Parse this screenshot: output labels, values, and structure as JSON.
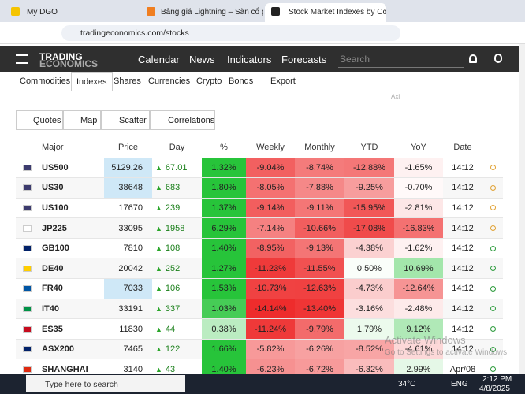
{
  "browser": {
    "tabs": [
      "My DGO",
      "Bảng giá Lightning – Sàn cổ phi",
      "Stock Market Indexes by Count"
    ],
    "url": "tradingeconomics.com/stocks"
  },
  "header": {
    "logo": [
      "TRADING",
      "ECONOMICS"
    ],
    "nav": [
      "Calendar",
      "News",
      "Indicators",
      "Forecasts"
    ],
    "search": "Search"
  },
  "subnav": [
    "Commodities",
    "Indexes",
    "Shares",
    "Currencies",
    "Crypto",
    "Bonds",
    "Export"
  ],
  "ad": "Axi",
  "toolbar": [
    "Quotes",
    "Map",
    "Scatter",
    "Correlations"
  ],
  "table": {
    "headers": [
      "Major",
      "Price",
      "Day",
      "%",
      "Weekly",
      "Monthly",
      "YTD",
      "YoY",
      "Date"
    ],
    "rows": [
      [
        "US500",
        "5129.26",
        "67.01",
        "1.32%",
        "-9.04%",
        "-8.74%",
        "-12.88%",
        "-1.65%",
        "14:12"
      ],
      [
        "US30",
        "38648",
        "683",
        "1.80%",
        "-8.05%",
        "-7.88%",
        "-9.25%",
        "-0.70%",
        "14:12"
      ],
      [
        "US100",
        "17670",
        "239",
        "1.37%",
        "-9.14%",
        "-9.11%",
        "-15.95%",
        "-2.81%",
        "14:12"
      ],
      [
        "JP225",
        "33095",
        "1958",
        "6.29%",
        "-7.14%",
        "-10.66%",
        "-17.08%",
        "-16.83%",
        "14:12"
      ],
      [
        "GB100",
        "7810",
        "108",
        "1.40%",
        "-8.95%",
        "-9.13%",
        "-4.38%",
        "-1.62%",
        "14:12"
      ],
      [
        "DE40",
        "20042",
        "252",
        "1.27%",
        "-11.23%",
        "-11.55%",
        "0.50%",
        "10.69%",
        "14:12"
      ],
      [
        "FR40",
        "7033",
        "106",
        "1.53%",
        "-10.73%",
        "-12.63%",
        "-4.73%",
        "-12.64%",
        "14:12"
      ],
      [
        "IT40",
        "33191",
        "337",
        "1.03%",
        "-14.14%",
        "-13.40%",
        "-3.16%",
        "-2.48%",
        "14:12"
      ],
      [
        "ES35",
        "11830",
        "44",
        "0.38%",
        "-11.24%",
        "-9.79%",
        "1.79%",
        "9.12%",
        "14:12"
      ],
      [
        "ASX200",
        "7465",
        "122",
        "1.66%",
        "-5.82%",
        "-6.26%",
        "-8.52%",
        "-4.61%",
        "14:12"
      ],
      [
        "SHANGHAI",
        "3140",
        "43",
        "1.40%",
        "-6.23%",
        "-6.72%",
        "-6.32%",
        "2.99%",
        "Apr/08"
      ]
    ]
  },
  "watermark": [
    "Activate Windows",
    "Go to Settings to activate Windows."
  ],
  "taskbar": {
    "search": "Type here to search",
    "weather": "34°C",
    "lang": "ENG",
    "time": "2:12 PM",
    "date": "4/8/2025"
  }
}
